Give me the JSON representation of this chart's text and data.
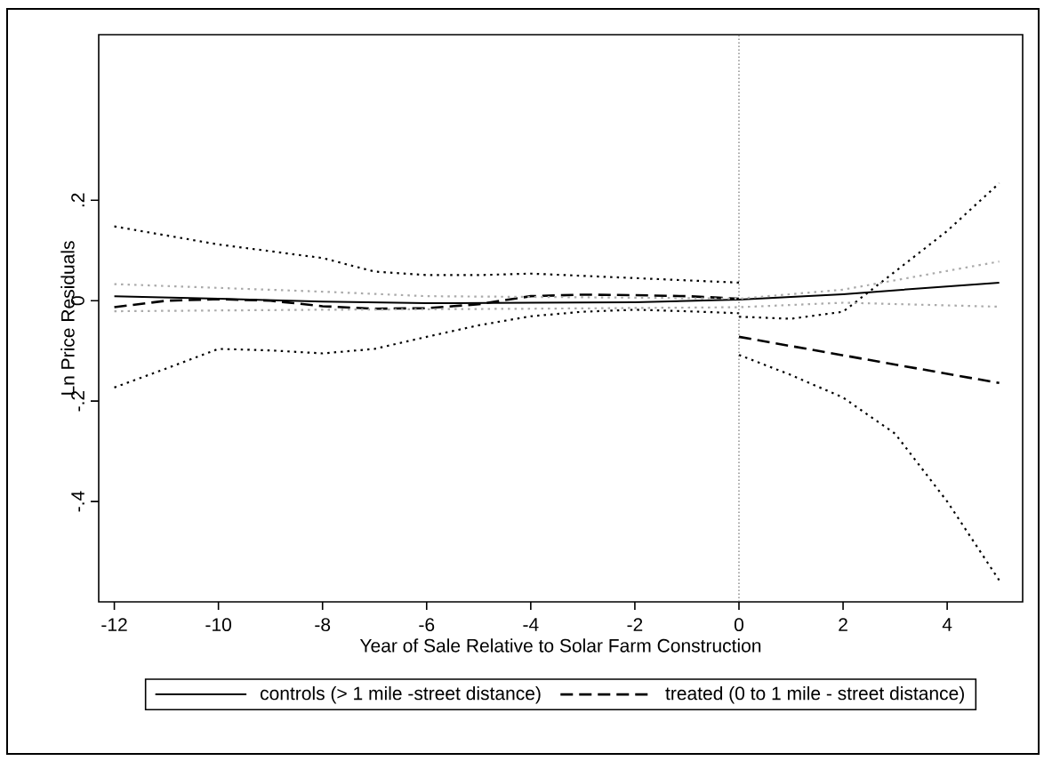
{
  "chart_data": {
    "type": "line",
    "xlabel": "Year of Sale Relative to Solar Farm Construction",
    "ylabel": "Ln Price Residuals",
    "xlim": [
      -12.3,
      5.45
    ],
    "ylim": [
      -0.6,
      0.53
    ],
    "xticks": [
      -12,
      -10,
      -8,
      -6,
      -4,
      -2,
      0,
      2,
      4
    ],
    "yticks": [
      {
        "value": -0.4,
        "label": "-.4"
      },
      {
        "value": -0.2,
        "label": "-.2"
      },
      {
        "value": 0,
        "label": "0"
      },
      {
        "value": 0.2,
        "label": ".2"
      }
    ],
    "legend": "bottom",
    "grid": false,
    "marker": "none",
    "ref_lines": [
      {
        "axis": "x",
        "value": 0,
        "color": "#555555",
        "line_style": "dotted"
      }
    ],
    "series": [
      {
        "name": "controls (> 1 mile -street distance)",
        "color": "#000000",
        "line_style": "solid",
        "x": [
          -12,
          -10,
          -8,
          -6,
          -4,
          -2,
          0,
          2,
          5
        ],
        "values": [
          0.009,
          0.004,
          -0.002,
          -0.005,
          -0.004,
          -0.003,
          0.002,
          0.013,
          0.036
        ]
      },
      {
        "name": "treated (0 to 1 mile - street distance)",
        "color": "#000000",
        "line_style": "dashed",
        "x": [
          -12,
          -11,
          -10,
          -9,
          -8,
          -7,
          -6,
          -5,
          -4,
          -3,
          -2,
          -1,
          0
        ],
        "values": [
          -0.013,
          0,
          0.003,
          0,
          -0.011,
          -0.016,
          -0.015,
          -0.007,
          0.009,
          0.012,
          0.011,
          0.009,
          0.004
        ]
      },
      {
        "color": "#000000",
        "line_style": "dashed",
        "x": [
          0,
          5
        ],
        "values": [
          -0.072,
          -0.164
        ]
      },
      {
        "color": "#000000",
        "line_style": "dotted",
        "x": [
          -12,
          -10,
          -8,
          -7,
          -6,
          -5,
          -4,
          -2,
          0
        ],
        "values": [
          0.148,
          0.112,
          0.085,
          0.058,
          0.051,
          0.051,
          0.054,
          0.045,
          0.036
        ]
      },
      {
        "color": "#000000",
        "line_style": "dotted",
        "x": [
          -12,
          -11,
          -10,
          -9,
          -8,
          -7,
          -6,
          -5,
          -4,
          -3,
          -2,
          -1,
          0
        ],
        "values": [
          -0.173,
          -0.135,
          -0.096,
          -0.099,
          -0.105,
          -0.096,
          -0.072,
          -0.049,
          -0.031,
          -0.022,
          -0.018,
          -0.021,
          -0.025
        ]
      },
      {
        "color": "#000000",
        "line_style": "dotted",
        "x": [
          0,
          1,
          2,
          3,
          4,
          5
        ],
        "values": [
          -0.032,
          -0.036,
          -0.022,
          0.058,
          0.139,
          0.234
        ]
      },
      {
        "color": "#000000",
        "line_style": "dotted",
        "x": [
          0,
          1,
          2,
          3,
          4,
          5
        ],
        "values": [
          -0.108,
          -0.148,
          -0.193,
          -0.265,
          -0.4,
          -0.557
        ]
      },
      {
        "color": "#aaaaaa",
        "line_style": "dotted",
        "x": [
          -12,
          -8,
          -6,
          -2,
          0,
          2,
          5
        ],
        "values": [
          0.033,
          0.018,
          0.009,
          0.006,
          0.004,
          0.022,
          0.078
        ]
      },
      {
        "color": "#aaaaaa",
        "line_style": "dotted",
        "x": [
          -12,
          -8,
          -4,
          0,
          2,
          5
        ],
        "values": [
          -0.021,
          -0.018,
          -0.016,
          -0.013,
          -0.004,
          -0.012
        ]
      }
    ]
  }
}
